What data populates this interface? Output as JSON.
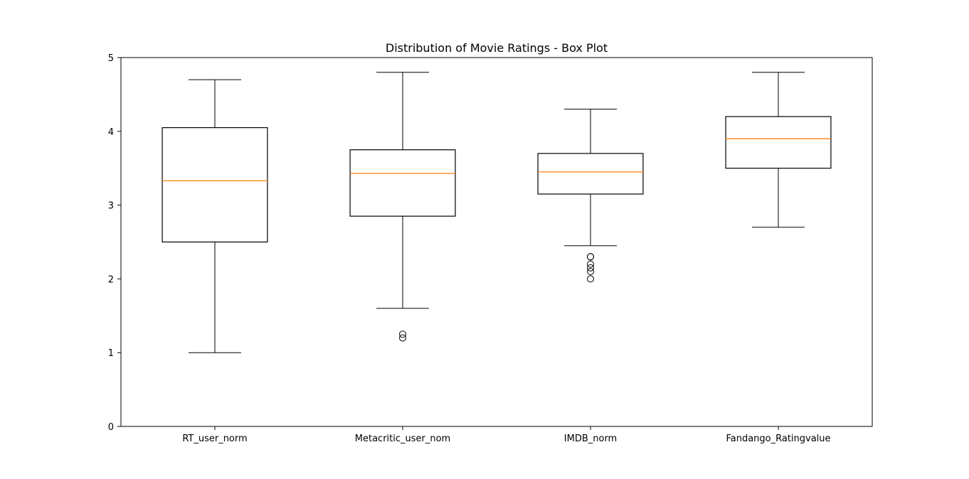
{
  "chart_data": {
    "type": "box",
    "title": "Distribution of Movie Ratings - Box Plot",
    "xlabel": "",
    "ylabel": "",
    "ylim": [
      0,
      5
    ],
    "yticks": [
      "0",
      "1",
      "2",
      "3",
      "4",
      "5"
    ],
    "grid": false,
    "colors": {
      "box": "#000000",
      "median": "#ff7f0e",
      "frame": "#000000"
    },
    "categories": [
      "RT_user_norm",
      "Metacritic_user_nom",
      "IMDB_norm",
      "Fandango_Ratingvalue"
    ],
    "boxes": [
      {
        "whisker_low": 1.0,
        "q1": 2.5,
        "median": 3.33,
        "q3": 4.05,
        "whisker_high": 4.7,
        "outliers": []
      },
      {
        "whisker_low": 1.6,
        "q1": 2.85,
        "median": 3.43,
        "q3": 3.75,
        "whisker_high": 4.8,
        "outliers": [
          1.2,
          1.25
        ]
      },
      {
        "whisker_low": 2.45,
        "q1": 3.15,
        "median": 3.45,
        "q3": 3.7,
        "whisker_high": 4.3,
        "outliers": [
          2.0,
          2.1,
          2.15,
          2.2,
          2.3,
          2.3
        ]
      },
      {
        "whisker_low": 2.7,
        "q1": 3.5,
        "median": 3.9,
        "q3": 4.2,
        "whisker_high": 4.8,
        "outliers": []
      }
    ]
  }
}
